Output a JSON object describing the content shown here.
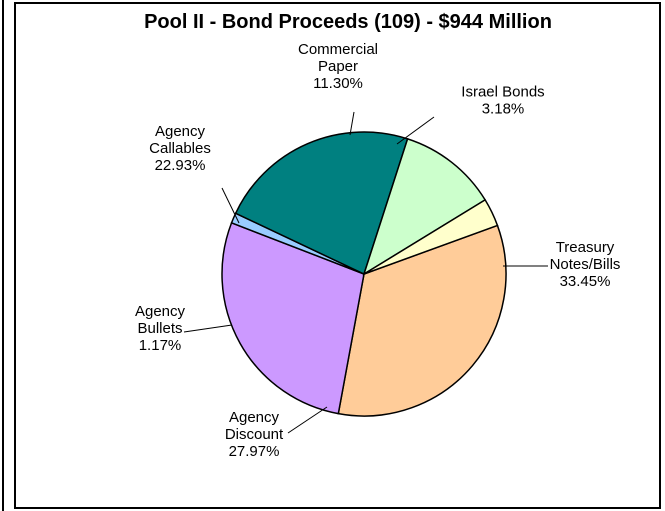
{
  "chart_data": {
    "type": "pie",
    "title": "Pool II - Bond Proceeds (109) - $944 Million",
    "slices": [
      {
        "label_lines": [
          "Treasury",
          "Notes/Bills",
          "33.45%"
        ],
        "value": 33.45,
        "color": "#FFCC99"
      },
      {
        "label_lines": [
          "Agency",
          "Discount",
          "27.97%"
        ],
        "value": 27.97,
        "color": "#CC99FF"
      },
      {
        "label_lines": [
          "Agency",
          "Bullets",
          "1.17%"
        ],
        "value": 1.17,
        "color": "#99CCFF"
      },
      {
        "label_lines": [
          "Agency",
          "Callables",
          "22.93%"
        ],
        "value": 22.93,
        "color": "#008080"
      },
      {
        "label_lines": [
          "Commercial",
          "Paper",
          "11.30%"
        ],
        "value": 11.3,
        "color": "#CCFFCC"
      },
      {
        "label_lines": [
          "Israel Bonds",
          "3.18%"
        ],
        "value": 3.18,
        "color": "#FFFFCC"
      }
    ]
  }
}
